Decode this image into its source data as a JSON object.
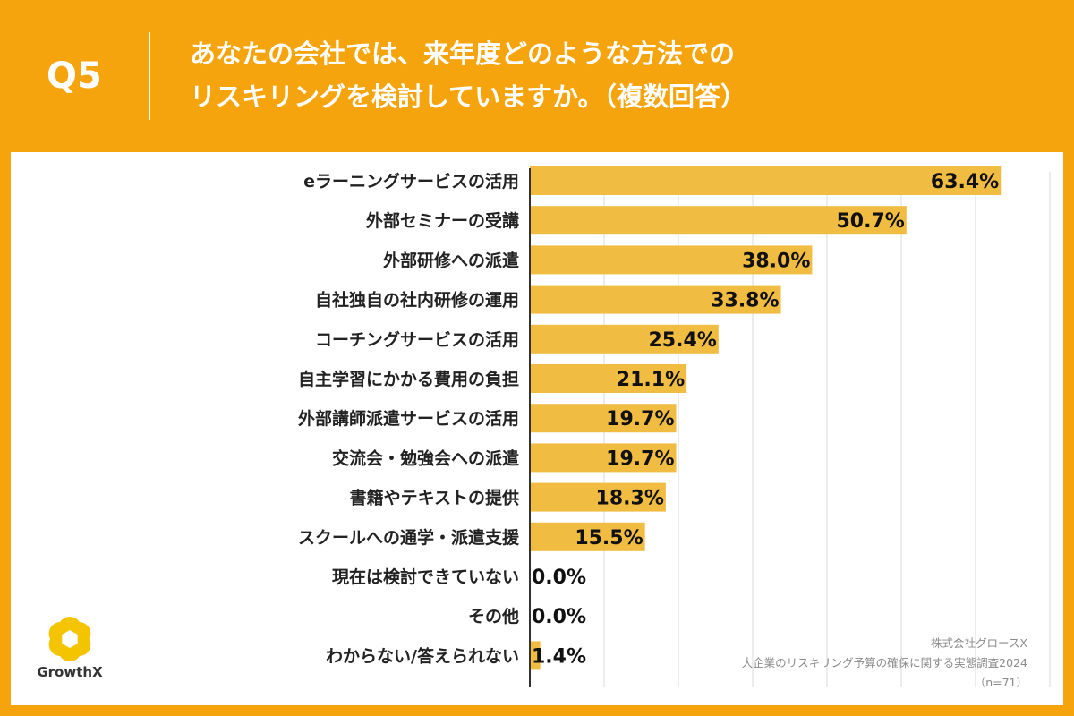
{
  "header": {
    "question_number": "Q5",
    "title_line1": "あなたの会社では、来年度どのような方法での",
    "title_line2": "リスキリングを検討していますか。（複数回答）"
  },
  "colors": {
    "background": "#F5A40D",
    "bar": "#F0BC42",
    "gridline": "#d9d9d9",
    "axis": "#333333"
  },
  "chart_data": {
    "type": "bar",
    "orientation": "horizontal",
    "unit": "%",
    "xlim": [
      0,
      80
    ],
    "grid": true,
    "categories": [
      "eラーニングサービスの活用",
      "外部セミナーの受講",
      "外部研修への派遣",
      "自社独自の社内研修の運用",
      "コーチングサービスの活用",
      "自主学習にかかる費用の負担",
      "外部講師派遣サービスの活用",
      "交流会・勉強会への派遣",
      "書籍やテキストの提供",
      "スクールへの通学・派遣支援",
      "現在は検討できていない",
      "その他",
      "わからない/答えられない"
    ],
    "values": [
      63.4,
      50.7,
      38.0,
      33.8,
      25.4,
      21.1,
      19.7,
      19.7,
      18.3,
      15.5,
      0.0,
      0.0,
      1.4
    ],
    "labels": [
      "63.4%",
      "50.7%",
      "38.0%",
      "33.8%",
      "25.4%",
      "21.1%",
      "19.7%",
      "19.7%",
      "18.3%",
      "15.5%",
      "0.0%",
      "0.0%",
      "1.4%"
    ]
  },
  "credit": {
    "company": "株式会社グロースX",
    "survey": "大企業のリスキリング予算の確保に関する実態調査2024",
    "sample": "（n=71）"
  },
  "logo": {
    "text": "GrowthX"
  }
}
